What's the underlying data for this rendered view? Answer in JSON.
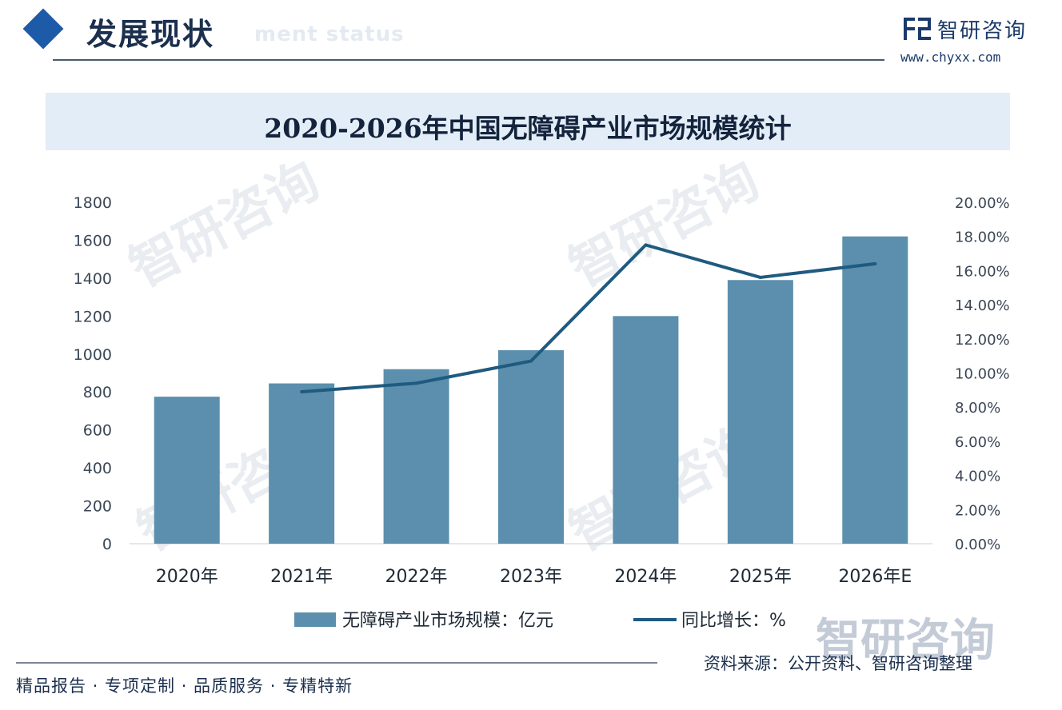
{
  "header": {
    "title": "发展现状",
    "subtitle_en": "ment status",
    "brand_name": "智研咨询",
    "brand_url": "www.chyxx.com"
  },
  "chart_data": {
    "type": "bar",
    "title": "2020-2026年中国无障碍产业市场规模统计",
    "categories": [
      "2020年",
      "2021年",
      "2022年",
      "2023年",
      "2024年",
      "2025年",
      "2026年E"
    ],
    "series": [
      {
        "name": "无障碍产业市场规模：亿元",
        "kind": "bar",
        "axis": "left",
        "color": "#5b8fad",
        "values": [
          775,
          845,
          920,
          1020,
          1200,
          1390,
          1620
        ]
      },
      {
        "name": "同比增长：%",
        "kind": "line",
        "axis": "right",
        "color": "#1f5a80",
        "values": [
          null,
          8.9,
          9.4,
          10.7,
          17.5,
          15.6,
          16.4
        ]
      }
    ],
    "y_left": {
      "min": 0,
      "max": 1800,
      "ticks": [
        "0",
        "200",
        "400",
        "600",
        "800",
        "1000",
        "1200",
        "1400",
        "1600",
        "1800"
      ]
    },
    "y_right": {
      "min": 0,
      "max": 20,
      "ticks": [
        "0.00%",
        "2.00%",
        "4.00%",
        "6.00%",
        "8.00%",
        "10.00%",
        "12.00%",
        "14.00%",
        "16.00%",
        "18.00%",
        "20.00%"
      ]
    }
  },
  "footer": {
    "tagline": "精品报告 · 专项定制 · 品质服务 · 专精特新",
    "source": "资料来源：公开资料、智研咨询整理"
  },
  "watermark": {
    "text": "智研咨询"
  }
}
